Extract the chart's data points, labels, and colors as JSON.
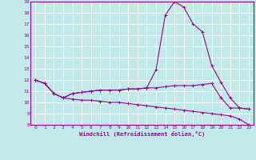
{
  "xlabel": "Windchill (Refroidissement éolien,°C)",
  "bg_color": "#c0eaea",
  "grid_color": "#ffffff",
  "line_color": "#990099",
  "xlim": [
    -0.5,
    23.5
  ],
  "ylim": [
    8,
    19
  ],
  "yticks": [
    8,
    9,
    10,
    11,
    12,
    13,
    14,
    15,
    16,
    17,
    18,
    19
  ],
  "xticks": [
    0,
    1,
    2,
    3,
    4,
    5,
    6,
    7,
    8,
    9,
    10,
    11,
    12,
    13,
    14,
    15,
    16,
    17,
    18,
    19,
    20,
    21,
    22,
    23
  ],
  "curve1_x": [
    0,
    1,
    2,
    3,
    4,
    5,
    6,
    7,
    8,
    9,
    10,
    11,
    12,
    13,
    14,
    15,
    16,
    17,
    18,
    19,
    20,
    21,
    22,
    23
  ],
  "curve1_y": [
    12.0,
    11.7,
    10.8,
    10.4,
    10.8,
    10.9,
    11.0,
    11.1,
    11.1,
    11.1,
    11.2,
    11.2,
    11.3,
    12.9,
    17.8,
    19.0,
    18.5,
    17.0,
    16.3,
    13.3,
    11.8,
    10.4,
    9.5,
    9.4
  ],
  "curve2_x": [
    0,
    1,
    2,
    3,
    4,
    5,
    6,
    7,
    8,
    9,
    10,
    11,
    12,
    13,
    14,
    15,
    16,
    17,
    18,
    19,
    20,
    21,
    22,
    23
  ],
  "curve2_y": [
    12.0,
    11.7,
    10.8,
    10.4,
    10.8,
    10.9,
    11.0,
    11.1,
    11.1,
    11.1,
    11.2,
    11.2,
    11.3,
    11.3,
    11.4,
    11.5,
    11.5,
    11.5,
    11.6,
    11.7,
    10.4,
    9.5,
    9.5,
    9.4
  ],
  "curve3_x": [
    0,
    1,
    2,
    3,
    4,
    5,
    6,
    7,
    8,
    9,
    10,
    11,
    12,
    13,
    14,
    15,
    16,
    17,
    18,
    19,
    20,
    21,
    22,
    23
  ],
  "curve3_y": [
    12.0,
    11.7,
    10.8,
    10.4,
    10.3,
    10.2,
    10.2,
    10.1,
    10.0,
    10.0,
    9.9,
    9.8,
    9.7,
    9.6,
    9.5,
    9.4,
    9.3,
    9.2,
    9.1,
    9.0,
    8.9,
    8.8,
    8.5,
    8.0
  ]
}
